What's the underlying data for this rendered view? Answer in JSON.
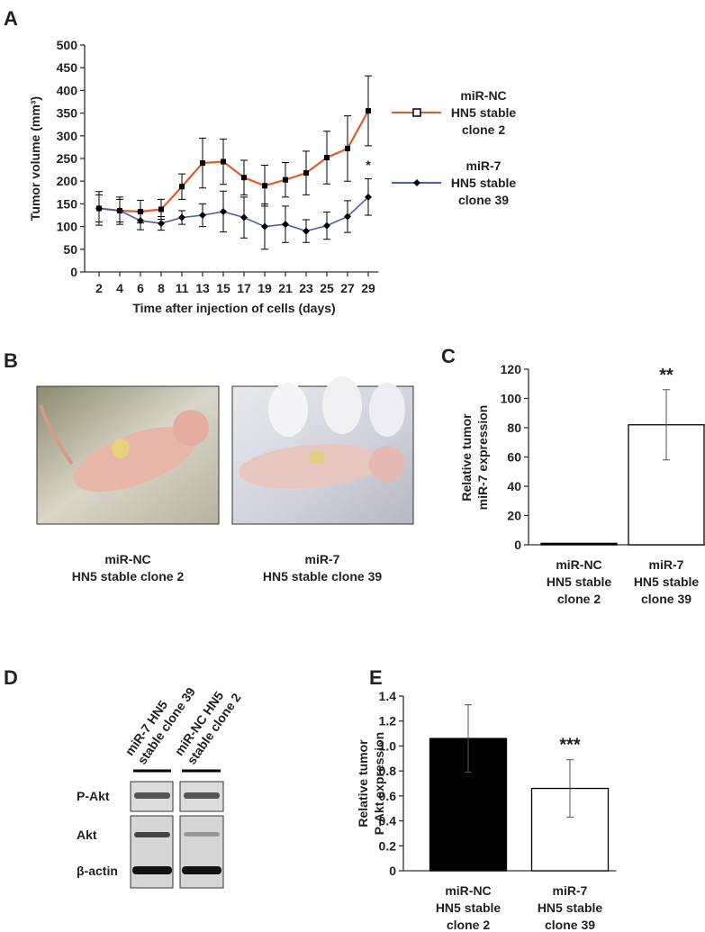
{
  "panel_labels": [
    "A",
    "B",
    "C",
    "D",
    "E"
  ],
  "chart_data": [
    {
      "type": "line",
      "xlabel": "Time after injection of cells (days)",
      "ylabel": "Tumor volume (mm³)",
      "categories": [
        "2",
        "4",
        "6",
        "8",
        "11",
        "13",
        "15",
        "17",
        "19",
        "21",
        "23",
        "25",
        "27",
        "29"
      ],
      "series": [
        {
          "name": "miR-NC\nHN5 stable\nclone 2",
          "color": "#e8582a",
          "marker": "square",
          "values": [
            140,
            135,
            133,
            138,
            188,
            240,
            243,
            208,
            190,
            203,
            218,
            252,
            272,
            355
          ],
          "errors": [
            37,
            30,
            25,
            22,
            28,
            55,
            50,
            38,
            45,
            38,
            48,
            58,
            72,
            77
          ]
        },
        {
          "name": "miR-7\nHN5 stable\nclone 39",
          "color": "#4a5fa8",
          "marker": "diamond",
          "values": [
            140,
            135,
            113,
            107,
            120,
            125,
            133,
            120,
            100,
            105,
            90,
            102,
            122,
            165
          ],
          "errors": [
            30,
            25,
            20,
            15,
            15,
            25,
            45,
            45,
            50,
            40,
            25,
            30,
            35,
            40
          ]
        }
      ],
      "annotation": "*",
      "ylim": [
        0,
        500
      ],
      "yticks": [
        0,
        50,
        100,
        150,
        200,
        250,
        300,
        350,
        400,
        450,
        500
      ]
    },
    {
      "type": "bar",
      "ylabel": "Relative tumor\nmiR-7 expression",
      "categories": [
        "miR-NC\nHN5 stable\nclone 2",
        "miR-7\nHN5 stable\nclone 39"
      ],
      "values": [
        1,
        82
      ],
      "errors": [
        0,
        24
      ],
      "colors": [
        "#000000",
        "#ffffff"
      ],
      "annotation": "**",
      "ylim": [
        0,
        120
      ],
      "yticks": [
        0,
        20,
        40,
        60,
        80,
        100,
        120
      ]
    },
    {
      "type": "bar",
      "ylabel": "Relative tumor\nP-Akt expression",
      "categories": [
        "miR-NC\nHN5 stable\nclone 2",
        "miR-7\nHN5 stable\nclone 39"
      ],
      "values": [
        1.06,
        0.66
      ],
      "errors": [
        0.27,
        0.23
      ],
      "colors": [
        "#000000",
        "#ffffff"
      ],
      "annotation": "***",
      "ylim": [
        0,
        1.4
      ],
      "yticks": [
        0,
        0.2,
        0.4,
        0.6,
        0.8,
        {
          "value": 1,
          "label": "1.0"
        },
        1.2,
        1.4
      ]
    }
  ],
  "photos": {
    "captions": [
      "miR-NC\nHN5 stable clone 2",
      "miR-7\nHN5 stable clone 39"
    ]
  },
  "blot": {
    "lanes": [
      "miR-7 HN5\nstable clone 39",
      "miR-NC HN5\nstable clone 2"
    ],
    "rows": [
      "P-Akt",
      "Akt",
      "β-actin"
    ]
  }
}
